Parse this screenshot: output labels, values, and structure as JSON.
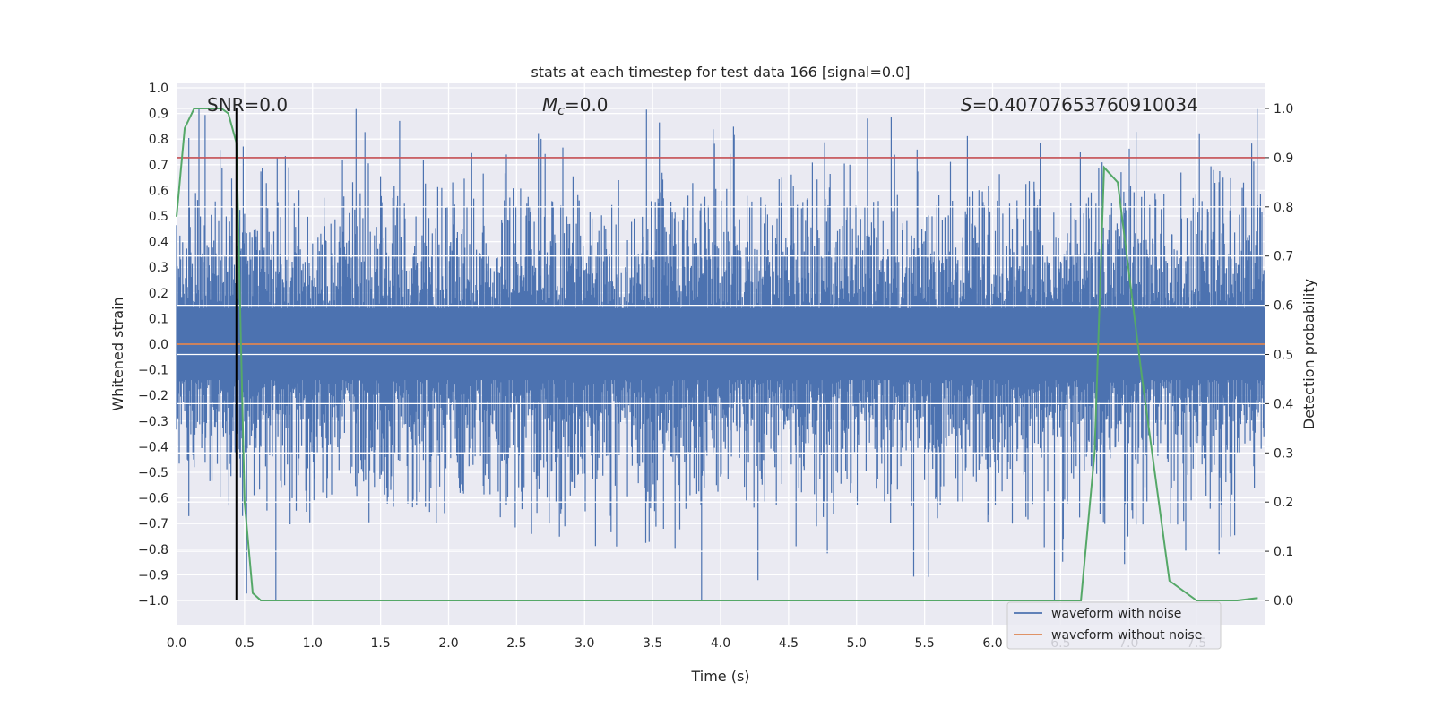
{
  "chart_data": {
    "type": "line",
    "title": "stats at each timestep for test data 166 [signal=0.0]",
    "xlabel": "Time (s)",
    "ylabel": "Whitened strain",
    "ylabel_right": "Detection probability",
    "xlim": [
      0.0,
      8.0
    ],
    "ylim": [
      -1.0,
      1.0
    ],
    "ylim_right": [
      0.0,
      1.0
    ],
    "x_ticks": [
      "0.0",
      "0.5",
      "1.0",
      "1.5",
      "2.0",
      "2.5",
      "3.0",
      "3.5",
      "4.0",
      "4.5",
      "5.0",
      "5.5",
      "6.0",
      "6.5",
      "7.0",
      "7.5"
    ],
    "y_ticks": [
      "1.0",
      "0.9",
      "0.8",
      "0.7",
      "0.6",
      "0.5",
      "0.4",
      "0.3",
      "0.2",
      "0.1",
      "0.0",
      "−0.1",
      "−0.2",
      "−0.3",
      "−0.4",
      "−0.5",
      "−0.6",
      "−0.7",
      "−0.8",
      "−0.9",
      "−1.0"
    ],
    "y_right_ticks": [
      "1.0",
      "0.9",
      "0.8",
      "0.7",
      "0.6",
      "0.5",
      "0.4",
      "0.3",
      "0.2",
      "0.1",
      "0.0"
    ],
    "annotations": {
      "snr": "SNR=0.0",
      "mc_symbol": "M",
      "mc_sub": "c",
      "mc_value": "=0.0",
      "s_symbol": "S",
      "s_value": "=0.40707653760910034"
    },
    "threshold": 0.9,
    "marker_time": 0.44,
    "series": [
      {
        "name": "waveform with noise",
        "color": "#4c72b0",
        "kind": "noise",
        "envelope_typical": 0.45,
        "envelope_max": 0.92
      },
      {
        "name": "waveform without noise",
        "color": "#dd8452",
        "values_constant": 0.0
      },
      {
        "name": "Detection probability",
        "color": "#55a868",
        "axis": "right",
        "x": [
          0.0,
          0.06,
          0.13,
          0.2,
          0.27,
          0.33,
          0.38,
          0.44,
          0.5,
          0.56,
          0.62,
          0.7,
          1.0,
          2.0,
          3.0,
          4.0,
          5.0,
          6.0,
          6.5,
          6.65,
          6.75,
          6.82,
          6.92,
          7.1,
          7.3,
          7.5,
          7.8,
          7.95
        ],
        "values": [
          0.78,
          0.96,
          1.0,
          1.0,
          1.0,
          1.0,
          0.99,
          0.93,
          0.2,
          0.015,
          0.0,
          0.0,
          0.0,
          0.0,
          0.0,
          0.0,
          0.0,
          0.0,
          0.0,
          0.0,
          0.3,
          0.88,
          0.85,
          0.45,
          0.04,
          0.0,
          0.0,
          0.005
        ]
      }
    ],
    "colors": {
      "threshold": "#c44e52",
      "marker": "#000000",
      "background": "#eaeaf2",
      "grid": "#ffffff"
    },
    "legend": {
      "position": "lower-right",
      "entries": [
        "waveform with noise",
        "waveform without noise"
      ]
    }
  }
}
